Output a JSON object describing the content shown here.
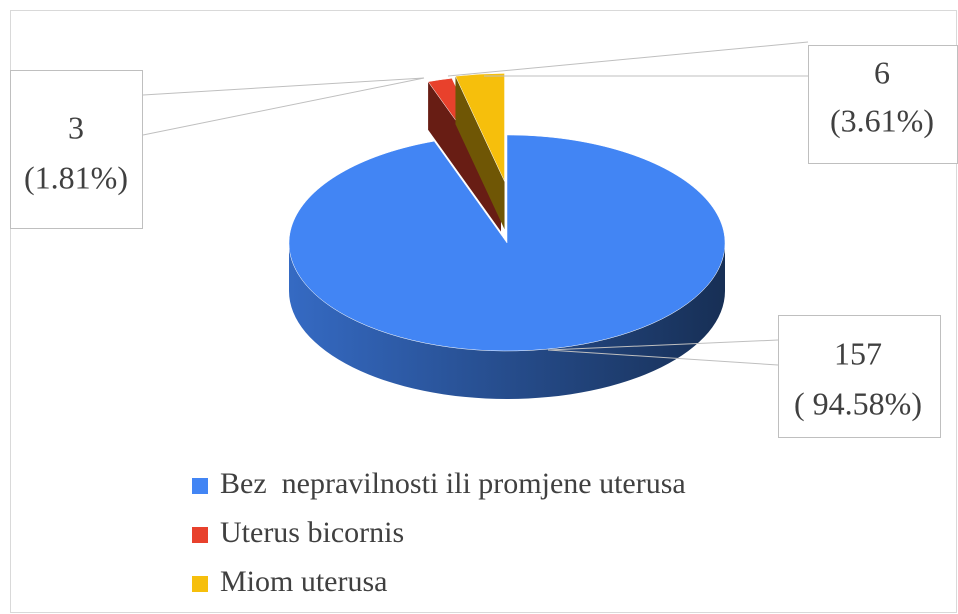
{
  "chart_data": {
    "type": "pie3d",
    "categories": [
      "Bez  nepravilnosti ili promjene uterusa",
      "Uterus bicornis",
      "Miom uterusa"
    ],
    "values": [
      157,
      3,
      6
    ],
    "value_labels": [
      [
        "157",
        "( 94.58%)"
      ],
      [
        "3",
        "(1.81%)"
      ],
      [
        "6",
        "(3.61%)"
      ]
    ],
    "colors": [
      "#4285f4",
      "#e8412c",
      "#f6bf0c"
    ],
    "legend": "bottom"
  }
}
